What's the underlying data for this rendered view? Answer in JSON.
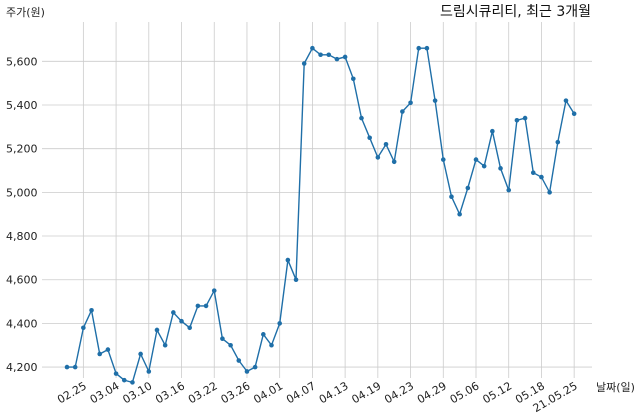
{
  "chart_data": {
    "type": "line",
    "title": "드림시큐리티, 최근 3개월",
    "ylabel": "주가(원)",
    "xlabel": "날짜(일)",
    "ylim": [
      4150,
      5780
    ],
    "yticks": [
      4200,
      4400,
      4600,
      4800,
      5000,
      5200,
      5400,
      5600
    ],
    "ytick_labels": [
      "4,200",
      "4,400",
      "4,600",
      "4,800",
      "5,000",
      "5,200",
      "5,400",
      "5,600"
    ],
    "xtick_labels": [
      "02.25",
      "03.04",
      "03.10",
      "03.16",
      "03.22",
      "03.26",
      "04.01",
      "04.07",
      "04.13",
      "04.19",
      "04.23",
      "04.29",
      "05.06",
      "05.12",
      "05.18",
      "21.05.25"
    ],
    "grid": true,
    "colors": {
      "line": "#1f6fa8",
      "grid": "#cccccc"
    },
    "series": [
      {
        "values": [
          4200,
          4200,
          4380,
          4460,
          4260,
          4280,
          4170,
          4140,
          4130,
          4260,
          4180,
          4370,
          4300,
          4450,
          4410,
          4380,
          4480,
          4480,
          4550,
          4330,
          4300,
          4230,
          4180,
          4200,
          4350,
          4300,
          4400,
          4690,
          4600,
          5590,
          5660,
          5630,
          5630,
          5610,
          5620,
          5520,
          5340,
          5250,
          5160,
          5220,
          5140,
          5370,
          5410,
          5660,
          5660,
          5420,
          5150,
          4980,
          4900,
          5020,
          5150,
          5120,
          5280,
          5110,
          5010,
          5330,
          5340,
          5090,
          5070,
          5000,
          5230,
          5420,
          5360
        ]
      }
    ]
  }
}
